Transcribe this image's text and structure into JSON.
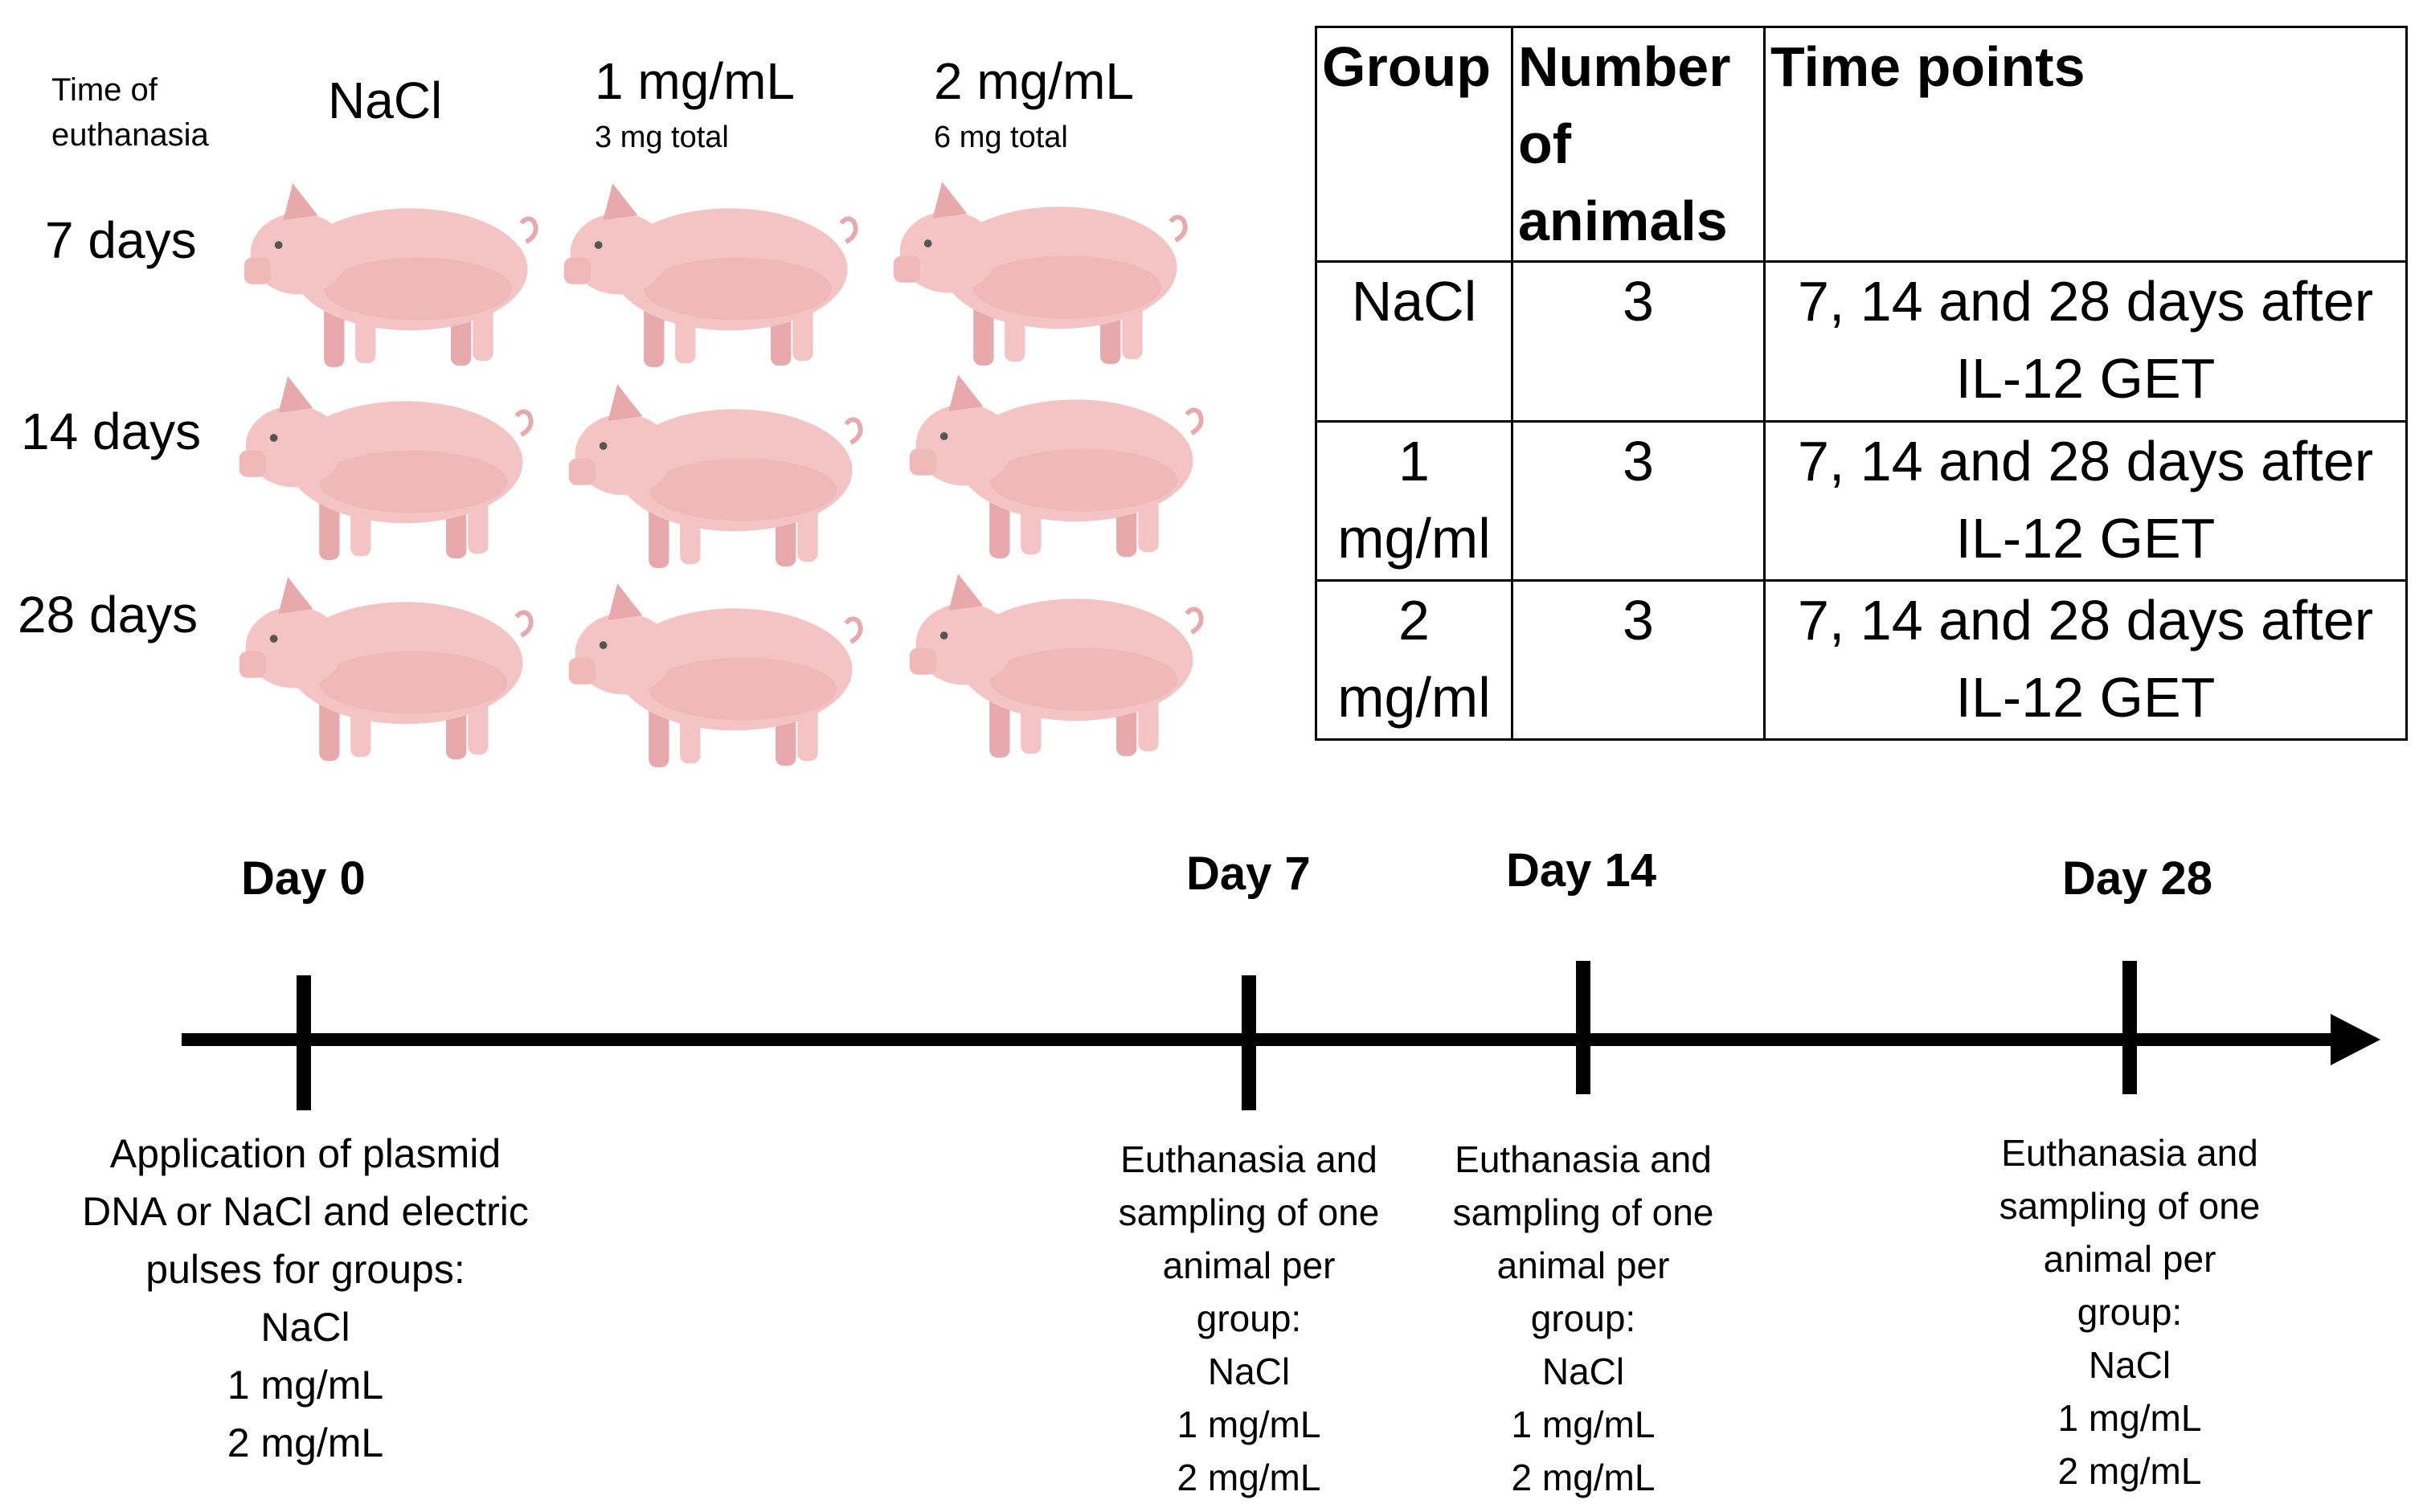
{
  "pigs_header": {
    "time_label": [
      "Time of",
      "euthanasia"
    ],
    "groups": [
      {
        "name": "NaCl",
        "sub": ""
      },
      {
        "name": "1 mg/mL",
        "sub": "3 mg total"
      },
      {
        "name": "2 mg/mL",
        "sub": "6 mg total"
      }
    ],
    "rows": [
      "7 days",
      "14 days",
      "28 days"
    ]
  },
  "table": {
    "headers": [
      "Group",
      "Number of animals",
      "Time points"
    ],
    "rows": [
      {
        "group": "NaCl",
        "number": "3",
        "time": "7, 14 and 28 days after IL-12 GET"
      },
      {
        "group": "1 mg/ml",
        "number": "3",
        "time": "7, 14 and 28 days after IL-12 GET"
      },
      {
        "group": "2 mg/ml",
        "number": "3",
        "time": "7, 14 and 28 days after IL-12 GET"
      }
    ]
  },
  "timeline": {
    "days": [
      "Day 0",
      "Day 7",
      "Day 14",
      "Day 28"
    ],
    "notes": [
      [
        "Application of plasmid",
        "DNA or NaCl and electric",
        "pulses for groups:",
        "NaCl",
        "1 mg/mL",
        "2 mg/mL"
      ],
      [
        "Euthanasia and",
        "sampling of one",
        "animal per",
        "group:",
        "NaCl",
        "1 mg/mL",
        "2 mg/mL"
      ],
      [
        "Euthanasia and",
        "sampling of one",
        "animal per",
        "group:",
        "NaCl",
        "1 mg/mL",
        "2 mg/mL"
      ],
      [
        "Euthanasia and",
        "sampling of one",
        "animal per",
        "group:",
        "NaCl",
        "1 mg/mL",
        "2 mg/mL"
      ]
    ]
  },
  "colors": {
    "pig": "#f4c4c4",
    "pig_shade": "#e7a9ab",
    "axis": "#000000"
  }
}
